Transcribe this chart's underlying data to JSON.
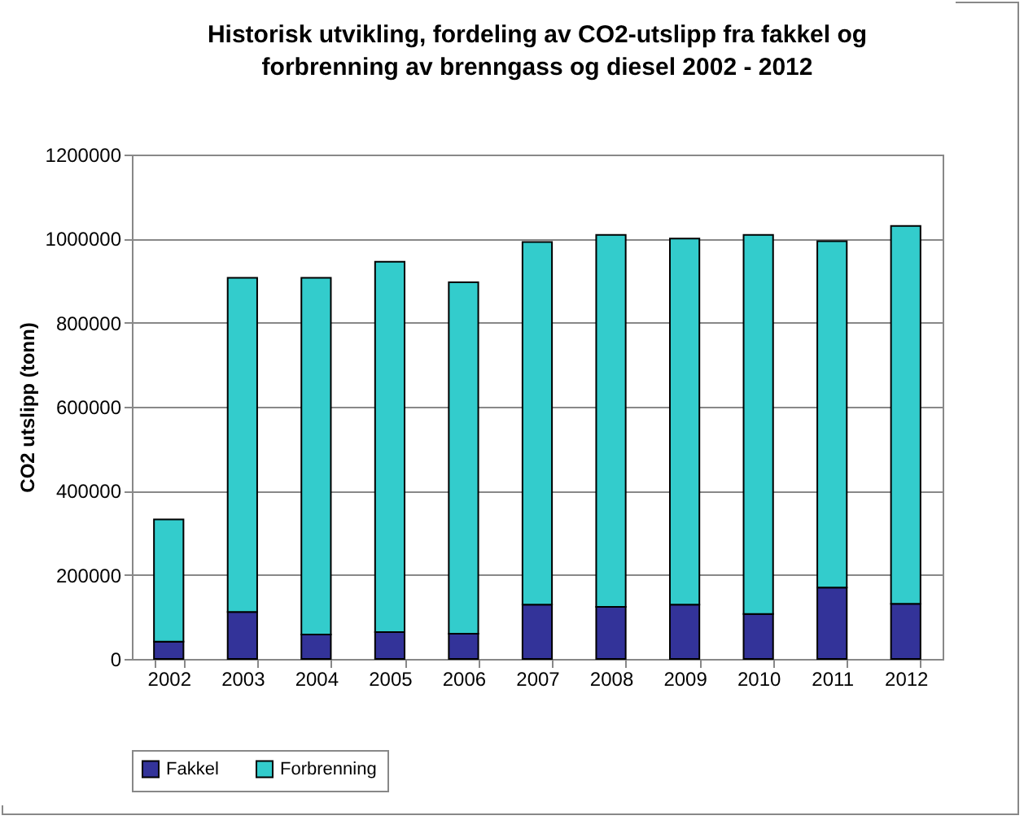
{
  "chart_data": {
    "type": "bar",
    "title": "Historisk utvikling, fordeling av CO2-utslipp fra fakkel og forbrenning av brenngass og diesel 2002 - 2012",
    "ylabel": "CO2 utslipp (tonn)",
    "categories": [
      "2002",
      "2003",
      "2004",
      "2005",
      "2006",
      "2007",
      "2008",
      "2009",
      "2010",
      "2011",
      "2012"
    ],
    "stacked": true,
    "series": [
      {
        "name": "Fakkel",
        "color": "#333399",
        "values": [
          41000,
          112000,
          58000,
          64000,
          60000,
          129000,
          124000,
          129000,
          107000,
          170000,
          131000
        ]
      },
      {
        "name": "Forbrenning",
        "color": "#33cccc",
        "values": [
          291000,
          795000,
          849000,
          881000,
          836000,
          863000,
          885000,
          871000,
          902000,
          824000,
          899000
        ]
      }
    ],
    "ylim": [
      0,
      1200000
    ],
    "yticks": [
      0,
      200000,
      400000,
      600000,
      800000,
      1000000,
      1200000
    ],
    "grid": "y",
    "legend": "bottom"
  }
}
